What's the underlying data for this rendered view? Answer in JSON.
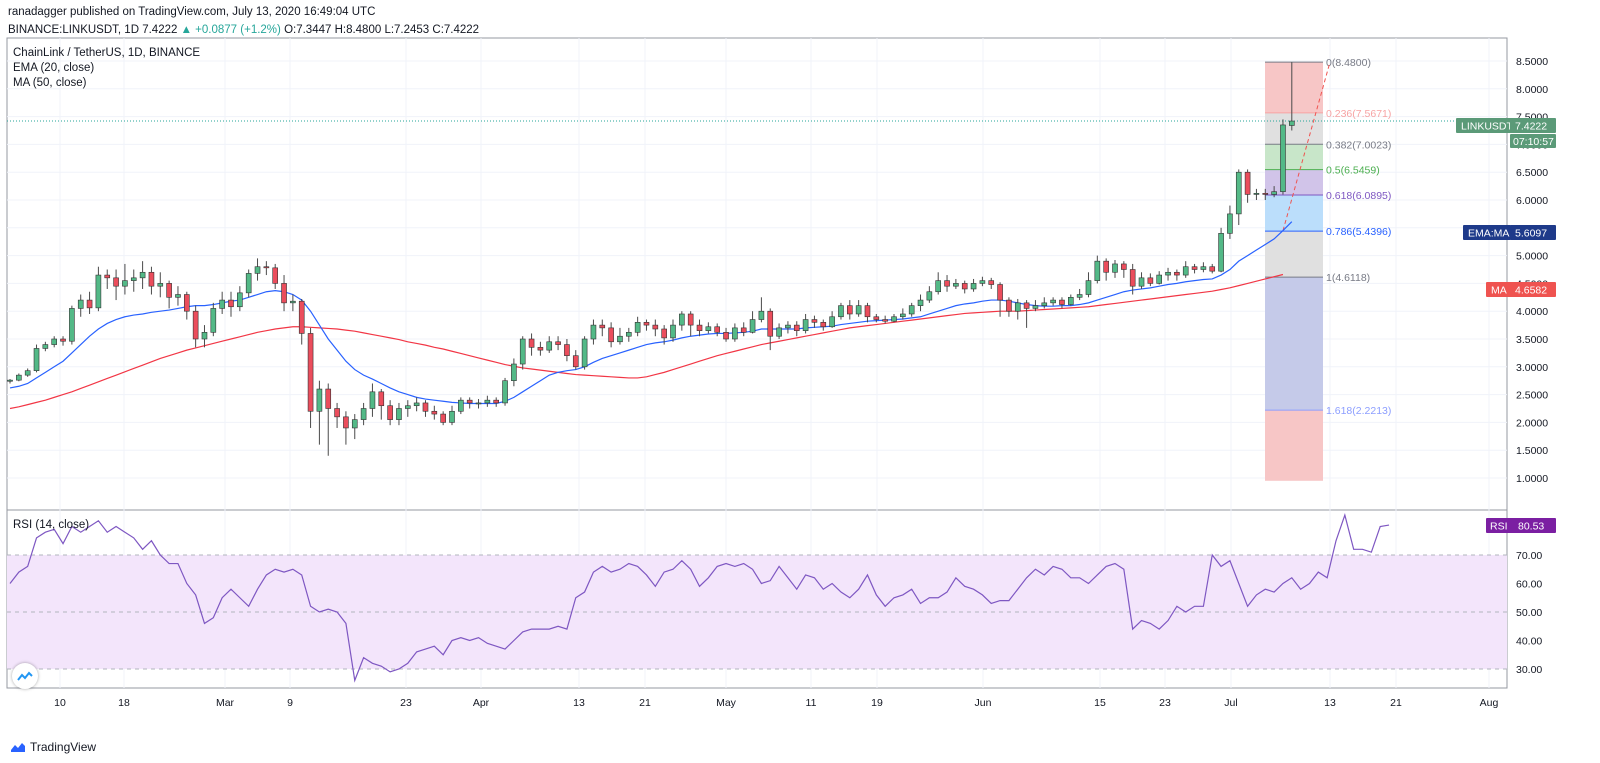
{
  "header": {
    "published_by": "ranadagger published on TradingView.com, July 13, 2020 16:49:04 UTC",
    "symbol": "BINANCE:LINKUSDT, 1D",
    "last": "7.4222",
    "change": "▲ +0.0877 (+1.2%)",
    "ohlc": "O:7.3447 H:8.4800 L:7.2453 C:7.4222"
  },
  "legend": {
    "pair": "ChainLink / TetherUS, 1D, BINANCE",
    "ema": "EMA (20, close)",
    "ma": "MA (50, close)",
    "rsi": "RSI (14, close)"
  },
  "badges": {
    "price_name": "LINKUSDT",
    "price_value": "7.4222",
    "countdown": "07:10:57",
    "ema_name": "EMA:MA",
    "ema_value": "5.6097",
    "ma_name": "MA",
    "ma_value": "4.6582",
    "rsi_name": "RSI",
    "rsi_value": "80.53"
  },
  "footer": {
    "brand": "TradingView"
  },
  "colors": {
    "up": "#26a69a",
    "down": "#ef5350",
    "candle_up_body": "#53b987",
    "candle_down_body": "#eb4d5c",
    "ema": "#2962ff",
    "ma": "#f23645",
    "rsi_line": "#7e57c2",
    "rsi_band": "#f3e5fb",
    "price_badge": "#5b9a78",
    "ema_badge": "#1e3a8a",
    "ma_badge": "#ef5350",
    "rsi_badge": "#7b1fa2"
  },
  "chart_data": {
    "type": "candlestick",
    "price_axis": {
      "ticks": [
        "1.0000",
        "1.5000",
        "2.0000",
        "2.5000",
        "3.0000",
        "3.5000",
        "4.0000",
        "4.5000",
        "5.0000",
        "5.5000",
        "6.0000",
        "6.5000",
        "7.0000",
        "7.5000",
        "8.0000",
        "8.5000"
      ],
      "range": [
        0.95,
        8.9
      ]
    },
    "rsi_axis": {
      "ticks": [
        "30.00",
        "40.00",
        "50.00",
        "60.00",
        "70.00"
      ],
      "range": [
        22,
        88
      ],
      "band": [
        30,
        70
      ]
    },
    "time_axis": {
      "labels": [
        "10",
        "18",
        "Mar",
        "9",
        "23",
        "Apr",
        "13",
        "21",
        "May",
        "11",
        "19",
        "Jun",
        "15",
        "23",
        "Jul",
        "13",
        "21",
        "Aug"
      ]
    },
    "fibonacci": [
      {
        "ratio": "0",
        "level": 8.48,
        "text": "0(8.4800)",
        "color": "#787b86"
      },
      {
        "ratio": "0.236",
        "level": 7.5671,
        "text": "0.236(7.5671)",
        "color": "#f7a4a4"
      },
      {
        "ratio": "0.382",
        "level": 7.0023,
        "text": "0.382(7.0023)",
        "color": "#787b86"
      },
      {
        "ratio": "0.5",
        "level": 6.5459,
        "text": "0.5(6.5459)",
        "color": "#4caf50"
      },
      {
        "ratio": "0.618",
        "level": 6.0895,
        "text": "0.618(6.0895)",
        "color": "#7e57c2"
      },
      {
        "ratio": "0.786",
        "level": 5.4396,
        "text": "0.786(5.4396)",
        "color": "#2962ff"
      },
      {
        "ratio": "1",
        "level": 4.6118,
        "text": "1(4.6118)",
        "color": "#787b86"
      },
      {
        "ratio": "1.618",
        "level": 2.2213,
        "text": "1.618(2.2213)",
        "color": "#8c9eff"
      }
    ],
    "candles": [
      [
        2.74,
        2.76,
        2.7,
        2.78
      ],
      [
        2.76,
        2.85,
        2.74,
        2.88
      ],
      [
        2.85,
        2.93,
        2.82,
        2.97
      ],
      [
        2.93,
        3.33,
        2.9,
        3.4
      ],
      [
        3.33,
        3.4,
        3.28,
        3.45
      ],
      [
        3.4,
        3.5,
        3.35,
        3.55
      ],
      [
        3.5,
        3.46,
        3.38,
        3.55
      ],
      [
        3.46,
        4.05,
        3.4,
        4.1
      ],
      [
        4.05,
        4.2,
        3.9,
        4.3
      ],
      [
        4.2,
        4.06,
        3.95,
        4.35
      ],
      [
        4.06,
        4.65,
        4.0,
        4.8
      ],
      [
        4.65,
        4.6,
        4.4,
        4.75
      ],
      [
        4.6,
        4.45,
        4.2,
        4.75
      ],
      [
        4.45,
        4.55,
        4.3,
        4.85
      ],
      [
        4.55,
        4.6,
        4.35,
        4.75
      ],
      [
        4.6,
        4.7,
        4.4,
        4.9
      ],
      [
        4.7,
        4.45,
        4.3,
        4.8
      ],
      [
        4.45,
        4.5,
        4.25,
        4.7
      ],
      [
        4.5,
        4.25,
        4.05,
        4.55
      ],
      [
        4.25,
        4.3,
        4.1,
        4.45
      ],
      [
        4.3,
        4.0,
        3.85,
        4.35
      ],
      [
        4.0,
        3.5,
        3.35,
        4.1
      ],
      [
        3.5,
        3.62,
        3.35,
        3.75
      ],
      [
        3.62,
        4.05,
        3.55,
        4.15
      ],
      [
        4.05,
        4.2,
        3.95,
        4.35
      ],
      [
        4.2,
        4.08,
        3.9,
        4.35
      ],
      [
        4.08,
        4.33,
        4.0,
        4.45
      ],
      [
        4.33,
        4.68,
        4.25,
        4.75
      ],
      [
        4.68,
        4.8,
        4.55,
        4.95
      ],
      [
        4.8,
        4.78,
        4.65,
        4.9
      ],
      [
        4.78,
        4.5,
        4.4,
        4.85
      ],
      [
        4.5,
        4.15,
        4.0,
        4.65
      ],
      [
        4.15,
        4.18,
        4.0,
        4.3
      ],
      [
        4.18,
        3.6,
        3.4,
        4.22
      ],
      [
        3.6,
        2.2,
        1.9,
        3.7
      ],
      [
        2.2,
        2.6,
        1.6,
        2.75
      ],
      [
        2.6,
        2.25,
        1.4,
        2.7
      ],
      [
        2.25,
        2.1,
        1.9,
        2.35
      ],
      [
        2.1,
        1.9,
        1.6,
        2.2
      ],
      [
        1.9,
        2.05,
        1.7,
        2.15
      ],
      [
        2.05,
        2.25,
        1.95,
        2.35
      ],
      [
        2.25,
        2.55,
        2.1,
        2.7
      ],
      [
        2.55,
        2.3,
        2.05,
        2.6
      ],
      [
        2.3,
        2.05,
        1.95,
        2.4
      ],
      [
        2.05,
        2.25,
        1.95,
        2.35
      ],
      [
        2.25,
        2.3,
        2.1,
        2.4
      ],
      [
        2.3,
        2.35,
        2.2,
        2.45
      ],
      [
        2.35,
        2.2,
        2.1,
        2.4
      ],
      [
        2.2,
        2.15,
        2.05,
        2.3
      ],
      [
        2.15,
        2.0,
        1.95,
        2.2
      ],
      [
        2.0,
        2.2,
        1.95,
        2.3
      ],
      [
        2.2,
        2.4,
        2.15,
        2.45
      ],
      [
        2.4,
        2.35,
        2.25,
        2.45
      ],
      [
        2.35,
        2.35,
        2.25,
        2.42
      ],
      [
        2.35,
        2.4,
        2.28,
        2.48
      ],
      [
        2.4,
        2.35,
        2.28,
        2.45
      ],
      [
        2.35,
        2.75,
        2.3,
        2.8
      ],
      [
        2.75,
        3.05,
        2.65,
        3.15
      ],
      [
        3.05,
        3.5,
        2.95,
        3.55
      ],
      [
        3.5,
        3.35,
        3.2,
        3.6
      ],
      [
        3.35,
        3.3,
        3.2,
        3.45
      ],
      [
        3.3,
        3.45,
        3.25,
        3.55
      ],
      [
        3.45,
        3.4,
        3.3,
        3.55
      ],
      [
        3.4,
        3.2,
        3.1,
        3.5
      ],
      [
        3.2,
        3.0,
        2.95,
        3.3
      ],
      [
        3.0,
        3.5,
        2.95,
        3.55
      ],
      [
        3.5,
        3.75,
        3.4,
        3.85
      ],
      [
        3.75,
        3.7,
        3.55,
        3.85
      ],
      [
        3.7,
        3.45,
        3.35,
        3.8
      ],
      [
        3.45,
        3.55,
        3.4,
        3.7
      ],
      [
        3.55,
        3.62,
        3.45,
        3.7
      ],
      [
        3.62,
        3.8,
        3.55,
        3.9
      ],
      [
        3.8,
        3.75,
        3.65,
        3.85
      ],
      [
        3.75,
        3.68,
        3.55,
        3.85
      ],
      [
        3.68,
        3.52,
        3.4,
        3.75
      ],
      [
        3.52,
        3.75,
        3.45,
        3.85
      ],
      [
        3.75,
        3.95,
        3.65,
        4.0
      ],
      [
        3.95,
        3.75,
        3.55,
        4.0
      ],
      [
        3.75,
        3.65,
        3.55,
        3.85
      ],
      [
        3.65,
        3.72,
        3.6,
        3.8
      ],
      [
        3.72,
        3.62,
        3.55,
        3.78
      ],
      [
        3.62,
        3.5,
        3.45,
        3.7
      ],
      [
        3.5,
        3.7,
        3.45,
        3.78
      ],
      [
        3.7,
        3.62,
        3.55,
        3.8
      ],
      [
        3.62,
        3.85,
        3.6,
        4.0
      ],
      [
        3.85,
        4.0,
        3.8,
        4.25
      ],
      [
        4.0,
        3.55,
        3.3,
        4.05
      ],
      [
        3.55,
        3.7,
        3.5,
        3.78
      ],
      [
        3.7,
        3.75,
        3.6,
        3.82
      ],
      [
        3.75,
        3.65,
        3.55,
        3.82
      ],
      [
        3.65,
        3.85,
        3.6,
        3.95
      ],
      [
        3.85,
        3.8,
        3.7,
        3.92
      ],
      [
        3.8,
        3.72,
        3.65,
        3.85
      ],
      [
        3.72,
        3.9,
        3.7,
        4.0
      ],
      [
        3.9,
        4.1,
        3.85,
        4.15
      ],
      [
        4.1,
        3.95,
        3.85,
        4.2
      ],
      [
        3.95,
        4.1,
        3.9,
        4.2
      ],
      [
        4.1,
        3.9,
        3.8,
        4.15
      ],
      [
        3.9,
        3.85,
        3.8,
        3.95
      ],
      [
        3.85,
        3.82,
        3.78,
        3.92
      ],
      [
        3.82,
        3.9,
        3.8,
        3.95
      ],
      [
        3.9,
        3.95,
        3.85,
        4.05
      ],
      [
        3.95,
        4.1,
        3.9,
        4.15
      ],
      [
        4.1,
        4.2,
        4.0,
        4.3
      ],
      [
        4.2,
        4.35,
        4.15,
        4.45
      ],
      [
        4.35,
        4.55,
        4.3,
        4.7
      ],
      [
        4.55,
        4.45,
        4.35,
        4.65
      ],
      [
        4.45,
        4.5,
        4.4,
        4.58
      ],
      [
        4.5,
        4.4,
        4.32,
        4.55
      ],
      [
        4.4,
        4.5,
        4.35,
        4.58
      ],
      [
        4.5,
        4.55,
        4.45,
        4.62
      ],
      [
        4.55,
        4.48,
        4.4,
        4.6
      ],
      [
        4.48,
        4.2,
        3.9,
        4.52
      ],
      [
        4.2,
        4.0,
        3.9,
        4.25
      ],
      [
        4.0,
        4.15,
        3.85,
        4.22
      ],
      [
        4.15,
        4.05,
        3.7,
        4.2
      ],
      [
        4.05,
        4.1,
        4.0,
        4.2
      ],
      [
        4.1,
        4.15,
        4.05,
        4.25
      ],
      [
        4.15,
        4.2,
        4.1,
        4.25
      ],
      [
        4.2,
        4.12,
        4.05,
        4.25
      ],
      [
        4.12,
        4.25,
        4.1,
        4.3
      ],
      [
        4.25,
        4.3,
        4.2,
        4.4
      ],
      [
        4.3,
        4.55,
        4.25,
        4.7
      ],
      [
        4.55,
        4.9,
        4.5,
        5.0
      ],
      [
        4.9,
        4.7,
        4.55,
        4.95
      ],
      [
        4.7,
        4.85,
        4.6,
        4.92
      ],
      [
        4.85,
        4.75,
        4.6,
        4.9
      ],
      [
        4.75,
        4.45,
        4.3,
        4.85
      ],
      [
        4.45,
        4.6,
        4.4,
        4.7
      ],
      [
        4.6,
        4.5,
        4.45,
        4.68
      ],
      [
        4.5,
        4.65,
        4.48,
        4.72
      ],
      [
        4.65,
        4.7,
        4.55,
        4.78
      ],
      [
        4.7,
        4.65,
        4.55,
        4.75
      ],
      [
        4.65,
        4.8,
        4.6,
        4.9
      ],
      [
        4.8,
        4.75,
        4.68,
        4.85
      ],
      [
        4.75,
        4.8,
        4.7,
        4.88
      ],
      [
        4.8,
        4.72,
        4.68,
        4.85
      ],
      [
        4.72,
        5.4,
        4.7,
        5.5
      ],
      [
        5.4,
        5.75,
        5.3,
        5.9
      ],
      [
        5.75,
        6.5,
        5.55,
        6.55
      ],
      [
        6.5,
        6.1,
        5.95,
        6.55
      ],
      [
        6.1,
        6.12,
        6.0,
        6.2
      ],
      [
        6.12,
        6.1,
        6.0,
        6.2
      ],
      [
        6.1,
        6.15,
        6.05,
        6.25
      ],
      [
        6.15,
        7.35,
        6.1,
        7.45
      ],
      [
        7.34,
        7.42,
        7.25,
        8.48
      ]
    ],
    "ema20": [
      2.62,
      2.65,
      2.7,
      2.8,
      2.9,
      3.0,
      3.1,
      3.25,
      3.4,
      3.55,
      3.68,
      3.78,
      3.85,
      3.9,
      3.93,
      3.95,
      3.98,
      4.0,
      4.02,
      4.05,
      4.08,
      4.1,
      4.1,
      4.12,
      4.15,
      4.18,
      4.2,
      4.25,
      4.3,
      4.35,
      4.37,
      4.35,
      4.3,
      4.2,
      4.0,
      3.75,
      3.5,
      3.3,
      3.1,
      2.95,
      2.85,
      2.78,
      2.7,
      2.62,
      2.55,
      2.5,
      2.45,
      2.42,
      2.4,
      2.38,
      2.36,
      2.35,
      2.34,
      2.34,
      2.34,
      2.34,
      2.38,
      2.45,
      2.55,
      2.65,
      2.75,
      2.85,
      2.9,
      2.93,
      2.95,
      3.0,
      3.08,
      3.15,
      3.2,
      3.25,
      3.3,
      3.35,
      3.4,
      3.43,
      3.45,
      3.48,
      3.52,
      3.55,
      3.57,
      3.59,
      3.6,
      3.6,
      3.61,
      3.62,
      3.64,
      3.68,
      3.68,
      3.68,
      3.68,
      3.68,
      3.7,
      3.71,
      3.72,
      3.73,
      3.76,
      3.78,
      3.8,
      3.82,
      3.83,
      3.84,
      3.85,
      3.86,
      3.88,
      3.9,
      3.95,
      4.0,
      4.05,
      4.1,
      4.13,
      4.15,
      4.18,
      4.2,
      4.2,
      4.18,
      4.15,
      4.12,
      4.1,
      4.09,
      4.09,
      4.1,
      4.1,
      4.12,
      4.15,
      4.2,
      4.25,
      4.3,
      4.35,
      4.38,
      4.4,
      4.42,
      4.45,
      4.48,
      4.5,
      4.53,
      4.55,
      4.57,
      4.58,
      4.65,
      4.75,
      4.9,
      5.0,
      5.1,
      5.2,
      5.3,
      5.45,
      5.61
    ],
    "ma50": [
      2.25,
      2.28,
      2.32,
      2.36,
      2.4,
      2.45,
      2.5,
      2.55,
      2.61,
      2.67,
      2.73,
      2.79,
      2.85,
      2.91,
      2.97,
      3.03,
      3.09,
      3.15,
      3.2,
      3.25,
      3.3,
      3.34,
      3.38,
      3.42,
      3.46,
      3.5,
      3.54,
      3.58,
      3.62,
      3.65,
      3.68,
      3.7,
      3.72,
      3.72,
      3.71,
      3.7,
      3.69,
      3.68,
      3.66,
      3.64,
      3.61,
      3.58,
      3.55,
      3.52,
      3.49,
      3.45,
      3.42,
      3.39,
      3.35,
      3.32,
      3.28,
      3.24,
      3.2,
      3.16,
      3.12,
      3.08,
      3.04,
      3.01,
      2.98,
      2.96,
      2.94,
      2.92,
      2.9,
      2.88,
      2.86,
      2.85,
      2.84,
      2.83,
      2.82,
      2.81,
      2.8,
      2.8,
      2.82,
      2.86,
      2.9,
      2.95,
      3.0,
      3.05,
      3.1,
      3.15,
      3.2,
      3.24,
      3.28,
      3.32,
      3.36,
      3.4,
      3.43,
      3.46,
      3.49,
      3.52,
      3.55,
      3.58,
      3.61,
      3.64,
      3.67,
      3.7,
      3.72,
      3.74,
      3.76,
      3.78,
      3.8,
      3.82,
      3.84,
      3.86,
      3.88,
      3.9,
      3.92,
      3.94,
      3.96,
      3.97,
      3.98,
      3.99,
      4.0,
      4.0,
      4.0,
      4.01,
      4.02,
      4.03,
      4.04,
      4.05,
      4.06,
      4.07,
      4.08,
      4.1,
      4.12,
      4.14,
      4.16,
      4.18,
      4.2,
      4.22,
      4.24,
      4.26,
      4.28,
      4.3,
      4.32,
      4.34,
      4.36,
      4.39,
      4.42,
      4.46,
      4.5,
      4.54,
      4.58,
      4.62,
      4.66
    ],
    "rsi": [
      60,
      64,
      66,
      76,
      78,
      79,
      74,
      80,
      78,
      80,
      82,
      78,
      80,
      78,
      76,
      72,
      75,
      70,
      67,
      67,
      60,
      56,
      46,
      48,
      55,
      58,
      55,
      52,
      58,
      63,
      65,
      64,
      65,
      63,
      52,
      50,
      51,
      50,
      46,
      26,
      34,
      32,
      31,
      29,
      30,
      32,
      36,
      37,
      38,
      35,
      40,
      41,
      40,
      41,
      39,
      38,
      37,
      40,
      43,
      44,
      44,
      44,
      45,
      44,
      55,
      57,
      64,
      66,
      64,
      65,
      67,
      66,
      63,
      59,
      64,
      65,
      68,
      65,
      59,
      62,
      66,
      67,
      66,
      67,
      65,
      60,
      61,
      66,
      62,
      58,
      63,
      62,
      58,
      60,
      57,
      55,
      58,
      63,
      56,
      52,
      55,
      56,
      58,
      53,
      55,
      55,
      57,
      62,
      59,
      58,
      56,
      53,
      54,
      54,
      58,
      62,
      65,
      63,
      66,
      65,
      62,
      62,
      60,
      63,
      66,
      67,
      65,
      44,
      47,
      46,
      44,
      47,
      52,
      50,
      52,
      52,
      70,
      66,
      68,
      60,
      52,
      56,
      58,
      57,
      60,
      62,
      58,
      60,
      64,
      62,
      75,
      84,
      72,
      72,
      71,
      80,
      80.5
    ]
  }
}
